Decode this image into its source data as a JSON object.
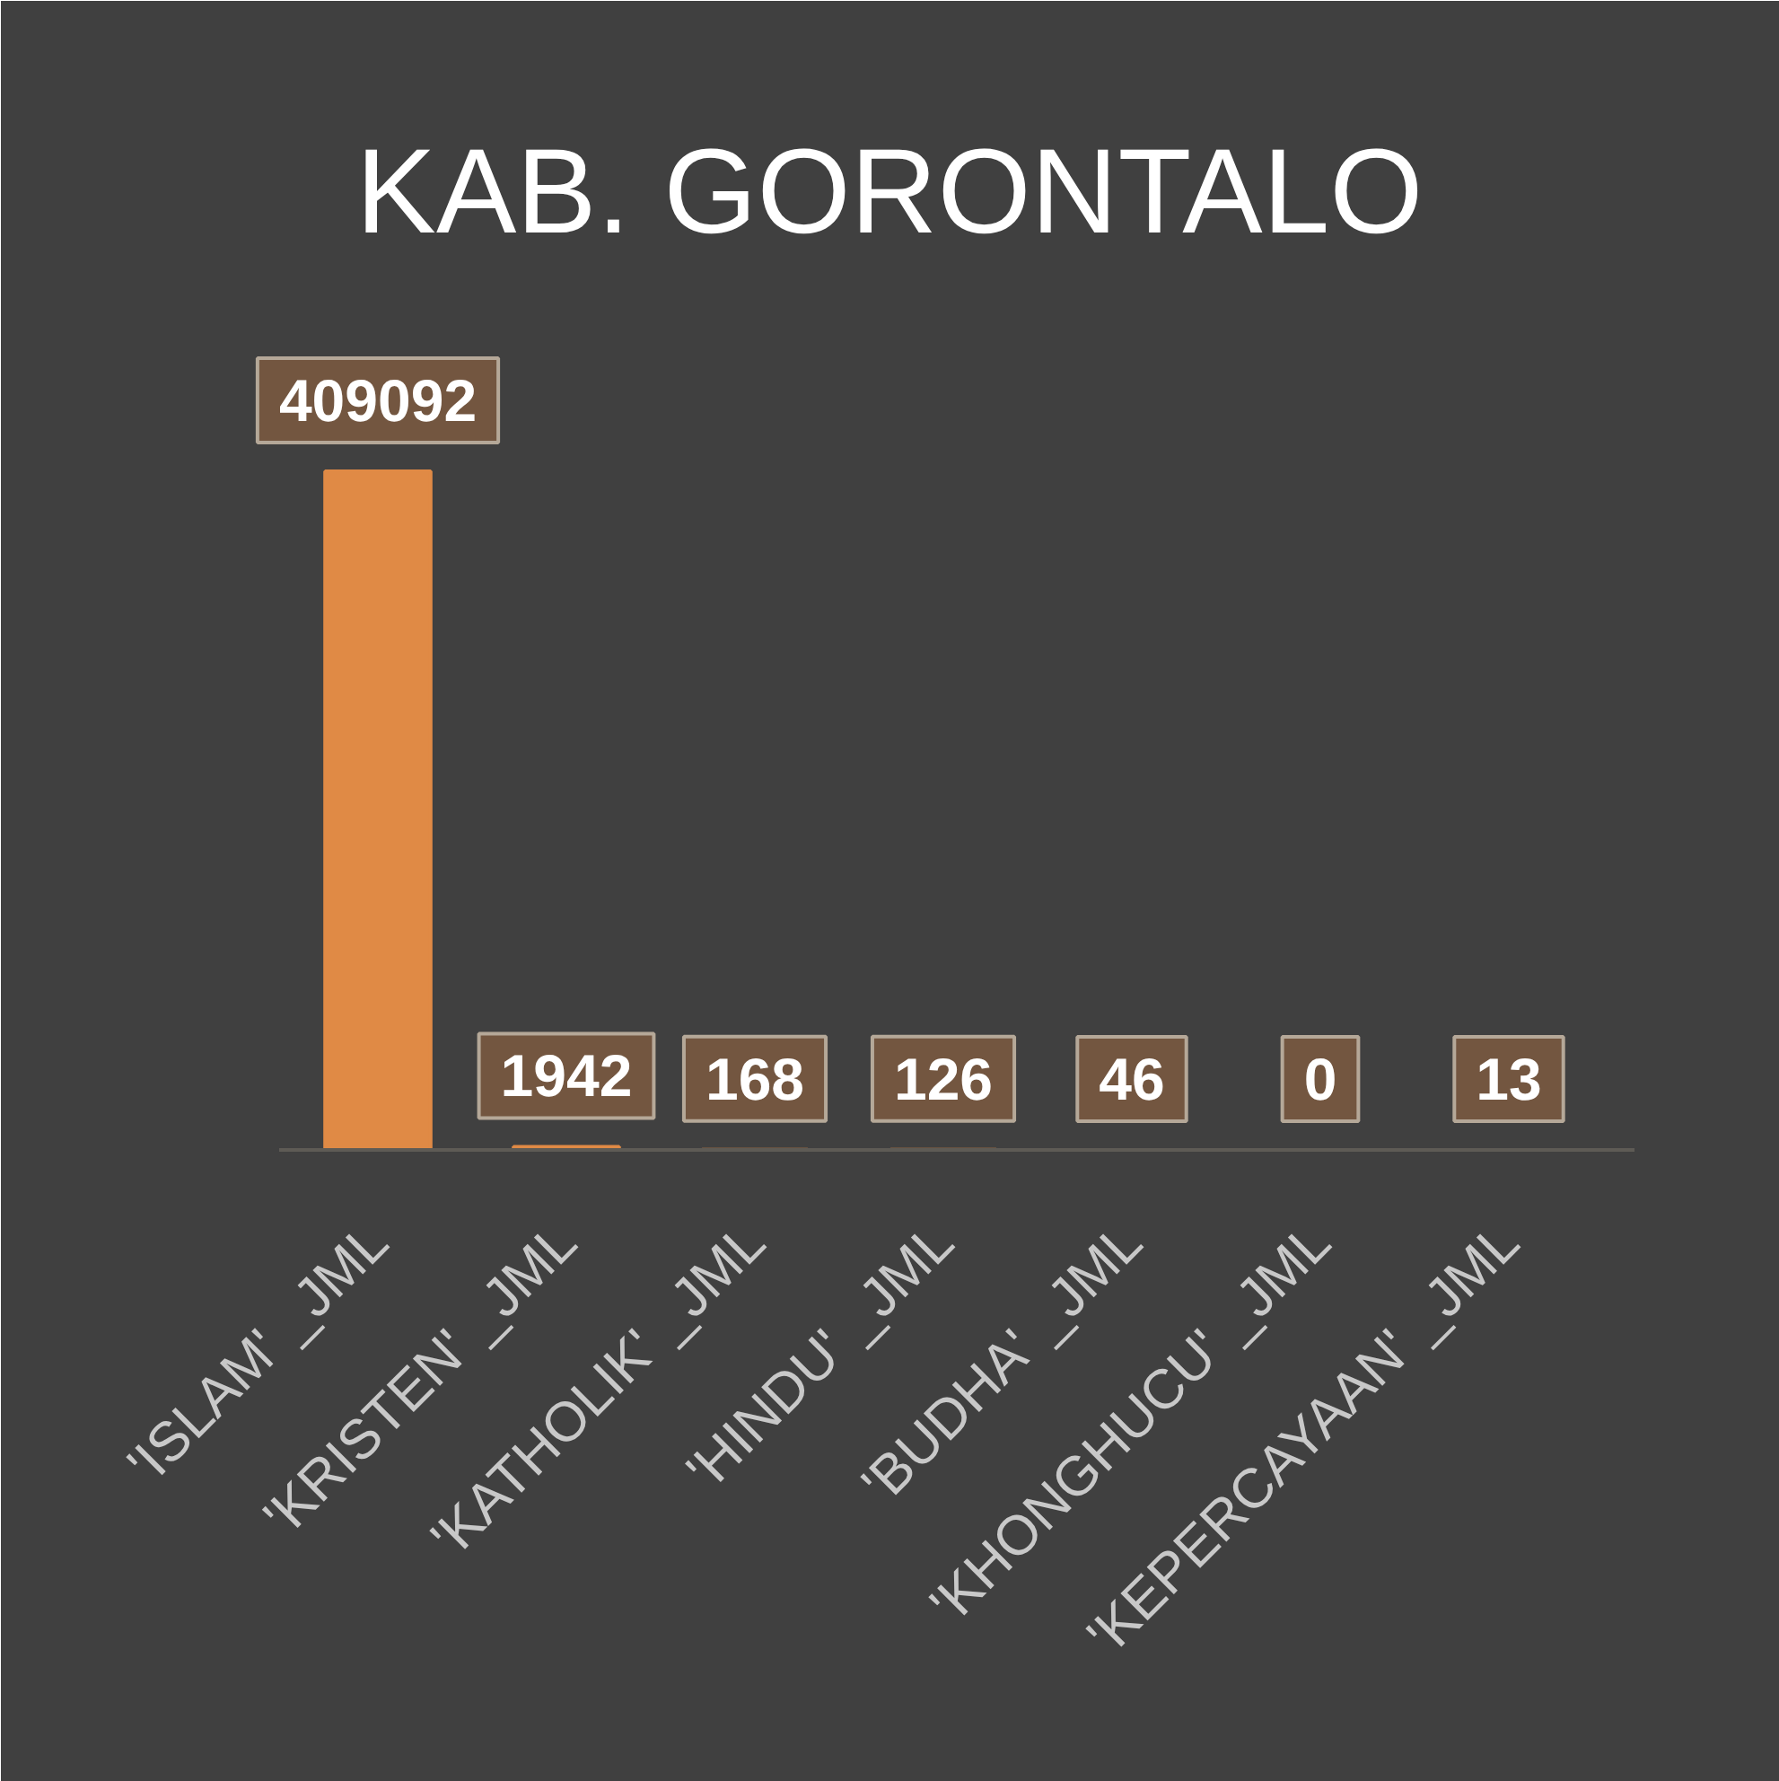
{
  "chart_data": {
    "type": "bar",
    "title": "KAB. GORONTALO",
    "categories": [
      "'ISLAM' _JML",
      "'KRISTEN' _JML",
      "'KATHOLIK' _JML",
      "'HINDU' _JML",
      "'BUDHA' _JML",
      "'KHONGHUCU' _JML",
      "'KEPERCAYAAN' _JML"
    ],
    "values": [
      409092,
      1942,
      168,
      126,
      46,
      0,
      13
    ],
    "color": "#e08a45",
    "data_labels": true
  }
}
